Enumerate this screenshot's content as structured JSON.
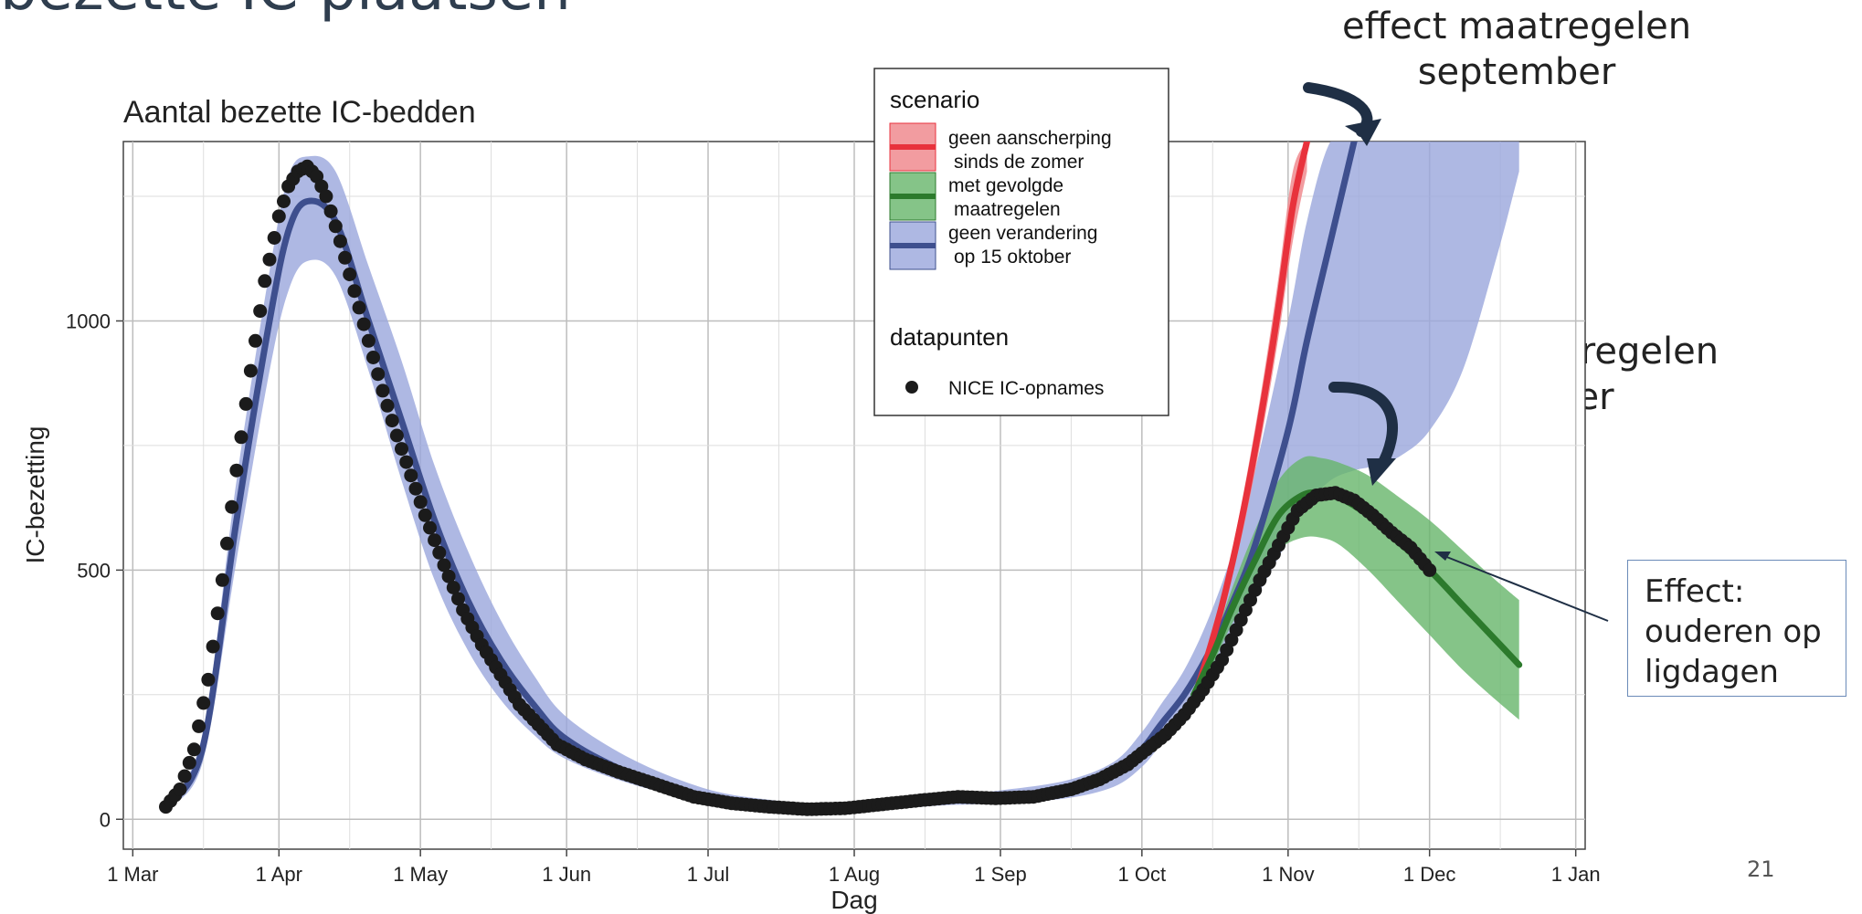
{
  "slide": {
    "title_fragment": "bezette IC-plaatsen",
    "note_september": [
      "effect maatregelen",
      "september"
    ],
    "note_october": [
      "effect maatregelen",
      "october"
    ],
    "effect_box": [
      "Effect:",
      "ouderen op",
      "ligdagen"
    ],
    "page_number": "21"
  },
  "colors": {
    "red": "#e8323c",
    "red_band": "#f08b8f",
    "blue": "#3e4f8e",
    "blue_band": "#9aa6dc",
    "green": "#2c7a2c",
    "green_band": "#67b56a",
    "points": "#1b1b1b",
    "arrow": "#1f2f45"
  },
  "chart_data": {
    "type": "line",
    "title": "Aantal bezette IC-bedden",
    "xlabel": "Dag",
    "ylabel": "IC-bezetting",
    "x_axis_type": "date",
    "xlim": [
      "2020-02-28",
      "2021-01-03"
    ],
    "ylim": [
      -60,
      1360
    ],
    "x_tick_dates": [
      "2020-03-01",
      "2020-04-01",
      "2020-05-01",
      "2020-06-01",
      "2020-07-01",
      "2020-08-01",
      "2020-09-01",
      "2020-10-01",
      "2020-11-01",
      "2020-12-01",
      "2021-01-01"
    ],
    "x_ticks": [
      "1 Mar",
      "1 Apr",
      "1 May",
      "1 Jun",
      "1 Jul",
      "1 Aug",
      "1 Sep",
      "1 Oct",
      "1 Nov",
      "1 Dec",
      "1 Jan"
    ],
    "y_ticks": [
      0,
      500,
      1000
    ],
    "grid": true,
    "legend": {
      "position": "top-center",
      "scenario_title": "scenario",
      "scenario_items": [
        {
          "key": "red",
          "lines": [
            "geen aanscherping",
            "sinds de zomer"
          ]
        },
        {
          "key": "green",
          "lines": [
            "met gevolgde",
            "maatregelen"
          ]
        },
        {
          "key": "blue",
          "lines": [
            "geen verandering",
            "op 15 oktober"
          ]
        }
      ],
      "points_title": "datapunten",
      "points_label": "NICE IC-opnames"
    },
    "series": [
      {
        "name": "geen verandering op 15 oktober",
        "color_key": "blue",
        "x": [
          "2020-03-09",
          "2020-03-16",
          "2020-03-23",
          "2020-03-30",
          "2020-04-03",
          "2020-04-07",
          "2020-04-13",
          "2020-04-20",
          "2020-04-27",
          "2020-05-04",
          "2020-05-11",
          "2020-05-18",
          "2020-05-25",
          "2020-06-01",
          "2020-06-15",
          "2020-07-01",
          "2020-07-15",
          "2020-07-26",
          "2020-08-10",
          "2020-08-20",
          "2020-09-01",
          "2020-09-15",
          "2020-09-25",
          "2020-10-01",
          "2020-10-05",
          "2020-10-10",
          "2020-10-15",
          "2020-10-20",
          "2020-10-25",
          "2020-11-01",
          "2020-11-05",
          "2020-11-10",
          "2020-11-15"
        ],
        "y": [
          30,
          150,
          600,
          1000,
          1180,
          1240,
          1200,
          1000,
          800,
          600,
          440,
          320,
          230,
          160,
          90,
          45,
          30,
          22,
          30,
          38,
          45,
          60,
          90,
          140,
          190,
          250,
          330,
          430,
          550,
          780,
          960,
          1160,
          1360
        ],
        "band_x": [
          "2020-03-09",
          "2020-03-16",
          "2020-03-23",
          "2020-03-30",
          "2020-04-03",
          "2020-04-07",
          "2020-04-13",
          "2020-04-20",
          "2020-04-27",
          "2020-05-04",
          "2020-05-11",
          "2020-05-18",
          "2020-05-25",
          "2020-06-01",
          "2020-06-15",
          "2020-07-01",
          "2020-07-15",
          "2020-07-26",
          "2020-08-10",
          "2020-08-20",
          "2020-09-01",
          "2020-09-15",
          "2020-09-25",
          "2020-10-01",
          "2020-10-05",
          "2020-10-10",
          "2020-10-15",
          "2020-10-20",
          "2020-10-25",
          "2020-11-01",
          "2020-11-05",
          "2020-11-10",
          "2020-11-15",
          "2020-11-20",
          "2020-11-25",
          "2020-12-01",
          "2020-12-08",
          "2020-12-15",
          "2020-12-20"
        ],
        "band_low": [
          25,
          120,
          520,
          900,
          1060,
          1120,
          1090,
          900,
          680,
          480,
          340,
          240,
          170,
          120,
          70,
          35,
          22,
          16,
          22,
          28,
          32,
          42,
          65,
          105,
          150,
          205,
          270,
          350,
          440,
          560,
          630,
          680,
          700,
          710,
          730,
          780,
          900,
          1120,
          1300
        ],
        "band_high": [
          35,
          180,
          680,
          1100,
          1290,
          1330,
          1300,
          1110,
          920,
          710,
          540,
          400,
          290,
          205,
          120,
          60,
          38,
          30,
          40,
          48,
          58,
          78,
          115,
          175,
          230,
          300,
          400,
          530,
          700,
          1000,
          1200,
          1360,
          1360,
          1360,
          1360,
          1360,
          1360,
          1360,
          1360
        ]
      },
      {
        "name": "geen aanscherping sinds de zomer",
        "color_key": "red",
        "x": [
          "2020-10-12",
          "2020-10-15",
          "2020-10-18",
          "2020-10-21",
          "2020-10-24",
          "2020-10-27",
          "2020-10-30",
          "2020-11-02",
          "2020-11-05"
        ],
        "y": [
          240,
          330,
          430,
          550,
          690,
          850,
          1030,
          1230,
          1360
        ],
        "band_low": [
          230,
          315,
          410,
          520,
          650,
          800,
          970,
          1160,
          1300
        ],
        "band_high": [
          250,
          345,
          450,
          580,
          730,
          900,
          1090,
          1300,
          1360
        ]
      },
      {
        "name": "met gevolgde maatregelen",
        "color_key": "green",
        "x": [
          "2020-10-12",
          "2020-10-16",
          "2020-10-20",
          "2020-10-25",
          "2020-10-30",
          "2020-11-04",
          "2020-11-08",
          "2020-11-12",
          "2020-11-18",
          "2020-11-24",
          "2020-12-01",
          "2020-12-08",
          "2020-12-15",
          "2020-12-20"
        ],
        "y": [
          250,
          330,
          420,
          520,
          610,
          650,
          655,
          645,
          610,
          560,
          500,
          430,
          360,
          310
        ],
        "band_low": [
          240,
          310,
          390,
          470,
          540,
          565,
          565,
          550,
          500,
          440,
          370,
          300,
          240,
          200
        ],
        "band_high": [
          260,
          350,
          460,
          580,
          680,
          725,
          725,
          715,
          690,
          650,
          600,
          540,
          480,
          440
        ]
      }
    ],
    "points": {
      "name": "NICE IC-opnames",
      "x": [
        "2020-03-08",
        "2020-03-11",
        "2020-03-14",
        "2020-03-17",
        "2020-03-20",
        "2020-03-23",
        "2020-03-26",
        "2020-03-29",
        "2020-04-01",
        "2020-04-03",
        "2020-04-05",
        "2020-04-07",
        "2020-04-09",
        "2020-04-11",
        "2020-04-14",
        "2020-04-17",
        "2020-04-20",
        "2020-04-23",
        "2020-04-26",
        "2020-04-29",
        "2020-05-02",
        "2020-05-06",
        "2020-05-10",
        "2020-05-14",
        "2020-05-18",
        "2020-05-22",
        "2020-05-26",
        "2020-05-30",
        "2020-06-05",
        "2020-06-12",
        "2020-06-20",
        "2020-06-28",
        "2020-07-06",
        "2020-07-14",
        "2020-07-22",
        "2020-07-30",
        "2020-08-07",
        "2020-08-15",
        "2020-08-23",
        "2020-08-31",
        "2020-09-08",
        "2020-09-16",
        "2020-09-22",
        "2020-09-28",
        "2020-10-02",
        "2020-10-06",
        "2020-10-10",
        "2020-10-14",
        "2020-10-18",
        "2020-10-22",
        "2020-10-26",
        "2020-10-30",
        "2020-11-03",
        "2020-11-07",
        "2020-11-11",
        "2020-11-15",
        "2020-11-19",
        "2020-11-23",
        "2020-11-27",
        "2020-12-01"
      ],
      "y": [
        25,
        60,
        140,
        280,
        480,
        700,
        900,
        1080,
        1210,
        1270,
        1300,
        1310,
        1290,
        1250,
        1160,
        1060,
        960,
        860,
        770,
        690,
        610,
        510,
        420,
        350,
        290,
        230,
        190,
        150,
        120,
        95,
        70,
        45,
        32,
        25,
        20,
        22,
        30,
        38,
        45,
        42,
        45,
        60,
        80,
        110,
        140,
        170,
        210,
        260,
        320,
        400,
        480,
        550,
        620,
        650,
        655,
        640,
        610,
        575,
        545,
        500
      ]
    }
  }
}
